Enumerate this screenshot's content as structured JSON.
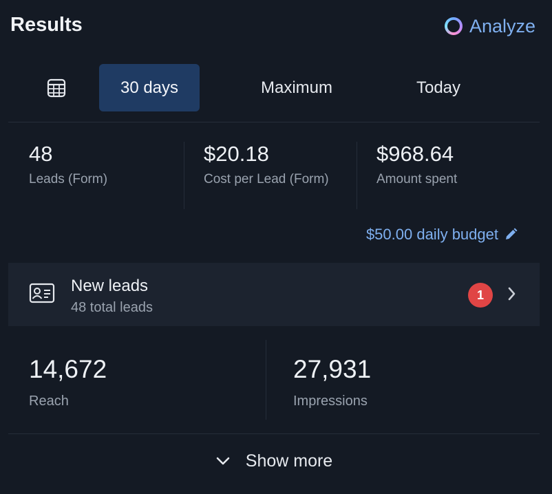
{
  "header": {
    "title": "Results",
    "analyze_label": "Analyze"
  },
  "tabs": [
    {
      "label": "30 days",
      "selected": true
    },
    {
      "label": "Maximum",
      "selected": false
    },
    {
      "label": "Today",
      "selected": false
    }
  ],
  "metrics": [
    {
      "value": "48",
      "label": "Leads (Form)"
    },
    {
      "value": "$20.18",
      "label": "Cost per Lead (Form)"
    },
    {
      "value": "$968.64",
      "label": "Amount spent"
    }
  ],
  "budget": {
    "label": "$50.00 daily budget"
  },
  "new_leads": {
    "title": "New leads",
    "subtitle": "48 total leads",
    "badge": "1"
  },
  "stats": [
    {
      "value": "14,672",
      "label": "Reach"
    },
    {
      "value": "27,931",
      "label": "Impressions"
    }
  ],
  "show_more_label": "Show more",
  "colors": {
    "accent": "#7fb0f0",
    "selected_tab": "#1f3b63",
    "badge": "#e04545",
    "background": "#141a24"
  }
}
